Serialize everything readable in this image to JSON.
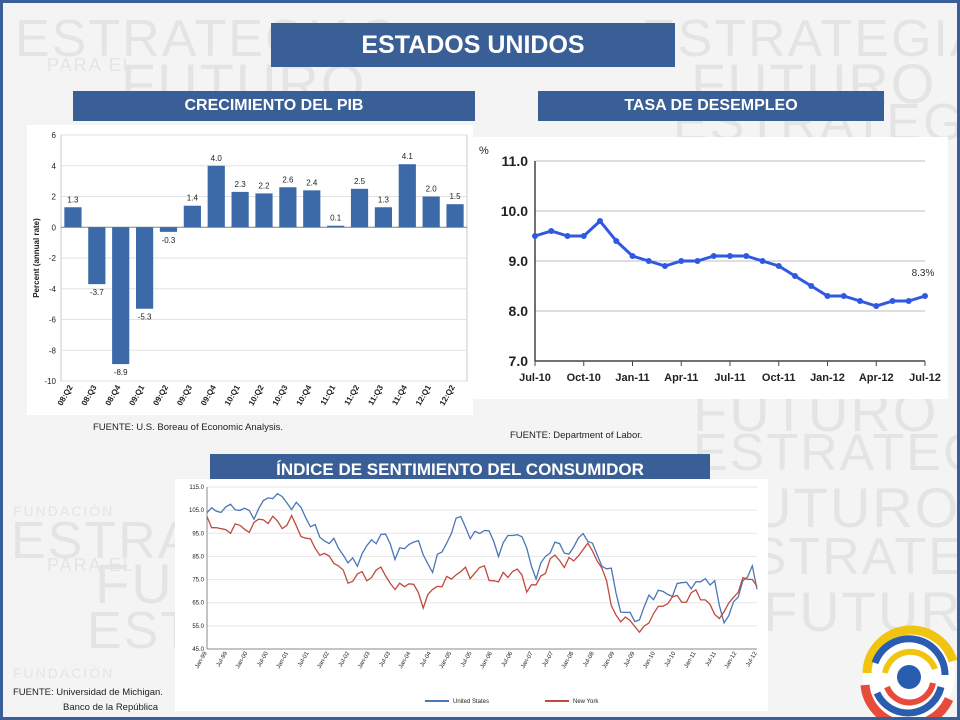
{
  "slide": {
    "title": "ESTADOS UNIDOS",
    "watermark_lines": [
      "FUNDACIÓN",
      "ESTRATEGIAS",
      "PARA EL",
      "FUTURO"
    ],
    "colors": {
      "banner": "#3a5f96",
      "frame": "#3a5f96"
    }
  },
  "gdp": {
    "banner": "CRECIMIENTO DEL PIB",
    "source": "FUENTE: U.S. Boreau of Economic Analysis."
  },
  "unemployment": {
    "banner": "TASA DE DESEMPLEO",
    "source": "FUENTE: Department of Labor."
  },
  "sentiment": {
    "banner": "ÍNDICE DE SENTIMIENTO DEL CONSUMIDOR",
    "source_line1": "FUENTE: Universidad de Michigan.",
    "source_line2": "Banco de la República"
  },
  "chart_data": [
    {
      "type": "bar",
      "ylabel": "Percent (annual rate)",
      "ylim": [
        -10,
        6
      ],
      "yticks": [
        -10,
        -8,
        -6,
        -4,
        -2,
        0,
        2,
        4,
        6
      ],
      "grid": true,
      "bar_color": "#3c6aa8",
      "categories": [
        "08:Q2",
        "08:Q3",
        "08:Q4",
        "09:Q1",
        "09:Q2",
        "09:Q3",
        "09:Q4",
        "10:Q1",
        "10:Q2",
        "10:Q3",
        "10:Q4",
        "11:Q1",
        "11:Q2",
        "11:Q3",
        "11:Q4",
        "12:Q1",
        "12:Q2"
      ],
      "values": [
        1.3,
        -3.7,
        -8.9,
        -5.3,
        -0.3,
        1.4,
        4.0,
        2.3,
        2.2,
        2.6,
        2.4,
        0.1,
        2.5,
        1.3,
        4.1,
        2.0,
        1.5
      ],
      "value_labels": [
        "1.3",
        "-3.7",
        "-8.9",
        "-5.3",
        "-0.3",
        "1.4",
        "4.0",
        "2.3",
        "2.2",
        "2.6",
        "2.4",
        "0.1",
        "2.5",
        "1.3",
        "4.1",
        "2.0",
        "1.5"
      ]
    },
    {
      "type": "line",
      "unit_label": "%",
      "ylim": [
        7.0,
        11.0
      ],
      "yticks": [
        "7.0",
        "8.0",
        "9.0",
        "10.0",
        "11.0"
      ],
      "xtick_labels": [
        "Jul-10",
        "Oct-10",
        "Jan-11",
        "Apr-11",
        "Jul-11",
        "Oct-11",
        "Jan-12",
        "Apr-12",
        "Jul-12"
      ],
      "grid": true,
      "line_color": "#2f59e0",
      "series": [
        {
          "values": [
            9.5,
            9.6,
            9.5,
            9.5,
            9.8,
            9.4,
            9.1,
            9.0,
            8.9,
            9.0,
            9.0,
            9.1,
            9.1,
            9.1,
            9.0,
            8.9,
            8.7,
            8.5,
            8.3,
            8.3,
            8.2,
            8.1,
            8.2,
            8.2,
            8.3
          ]
        }
      ],
      "annotation": "8.3%"
    },
    {
      "type": "line",
      "ylim": [
        45.0,
        115.0
      ],
      "yticks": [
        "45.0",
        "55.0",
        "65.0",
        "75.0",
        "85.0",
        "95.0",
        "105.0",
        "115.0"
      ],
      "xtick_labels": [
        "Jan-99",
        "Jul-99",
        "Jan-00",
        "Jul-00",
        "Jan-01",
        "Jul-01",
        "Jan-02",
        "Jul-02",
        "Jan-03",
        "Jul-03",
        "Jan-04",
        "Jul-04",
        "Jan-05",
        "Jul-05",
        "Jan-06",
        "Jul-06",
        "Jan-07",
        "Jul-07",
        "Jan-08",
        "Jul-08",
        "Jan-09",
        "Jul-09",
        "Jan-10",
        "Jul-10",
        "Jan-11",
        "Jul-11",
        "Jan-12",
        "Jul-12"
      ],
      "grid": true,
      "series": [
        {
          "name": "United States",
          "color": "#4a76b8",
          "anchors": [
            [
              0,
              103.9
            ],
            [
              2,
              105
            ],
            [
              6,
              106.5
            ],
            [
              10,
              103
            ],
            [
              12,
              108
            ],
            [
              14,
              112
            ],
            [
              16,
              110
            ],
            [
              18,
              107
            ],
            [
              20,
              106
            ],
            [
              22,
              99
            ],
            [
              24,
              94
            ],
            [
              26,
              91
            ],
            [
              28,
              90
            ],
            [
              30,
              82
            ],
            [
              32,
              83
            ],
            [
              34,
              89
            ],
            [
              36,
              93
            ],
            [
              38,
              94
            ],
            [
              40,
              86
            ],
            [
              42,
              88
            ],
            [
              44,
              93
            ],
            [
              46,
              86
            ],
            [
              48,
              79
            ],
            [
              50,
              88
            ],
            [
              52,
              95
            ],
            [
              54,
              104
            ],
            [
              56,
              92
            ],
            [
              58,
              97
            ],
            [
              60,
              95
            ],
            [
              62,
              87
            ],
            [
              64,
              93
            ],
            [
              66,
              96
            ],
            [
              68,
              88
            ],
            [
              70,
              76
            ],
            [
              72,
              85
            ],
            [
              74,
              91
            ],
            [
              76,
              87
            ],
            [
              78,
              88
            ],
            [
              80,
              96
            ],
            [
              82,
              89
            ],
            [
              84,
              82
            ],
            [
              86,
              78
            ],
            [
              88,
              62
            ],
            [
              90,
              59
            ],
            [
              92,
              58
            ],
            [
              94,
              67
            ],
            [
              96,
              70
            ],
            [
              98,
              68
            ],
            [
              100,
              72
            ],
            [
              102,
              74
            ],
            [
              104,
              72
            ],
            [
              106,
              76
            ],
            [
              108,
              72
            ],
            [
              110,
              57
            ],
            [
              112,
              63
            ],
            [
              114,
              75
            ],
            [
              115,
              76
            ],
            [
              116,
              79
            ],
            [
              117,
              73
            ]
          ]
        },
        {
          "name": "New York",
          "color": "#c04a3c",
          "anchors": [
            [
              0,
              100
            ],
            [
              2,
              98
            ],
            [
              4,
              95
            ],
            [
              6,
              99
            ],
            [
              8,
              96
            ],
            [
              10,
              99
            ],
            [
              12,
              101
            ],
            [
              14,
              101
            ],
            [
              16,
              98
            ],
            [
              18,
              101
            ],
            [
              20,
              95
            ],
            [
              22,
              91
            ],
            [
              24,
              87
            ],
            [
              26,
              84
            ],
            [
              28,
              82
            ],
            [
              30,
              73
            ],
            [
              32,
              78
            ],
            [
              34,
              75
            ],
            [
              36,
              79
            ],
            [
              38,
              78
            ],
            [
              40,
              70
            ],
            [
              42,
              74
            ],
            [
              44,
              72
            ],
            [
              46,
              65
            ],
            [
              48,
              70
            ],
            [
              50,
              74
            ],
            [
              52,
              75
            ],
            [
              54,
              80
            ],
            [
              56,
              76
            ],
            [
              58,
              81
            ],
            [
              60,
              76
            ],
            [
              62,
              74
            ],
            [
              64,
              78
            ],
            [
              66,
              79
            ],
            [
              68,
              72
            ],
            [
              70,
              72
            ],
            [
              72,
              80
            ],
            [
              74,
              85
            ],
            [
              76,
              82
            ],
            [
              78,
              83
            ],
            [
              80,
              89
            ],
            [
              82,
              88
            ],
            [
              84,
              80
            ],
            [
              86,
              65
            ],
            [
              88,
              56
            ],
            [
              90,
              59
            ],
            [
              92,
              51
            ],
            [
              94,
              58
            ],
            [
              96,
              62
            ],
            [
              98,
              66
            ],
            [
              100,
              67
            ],
            [
              102,
              66
            ],
            [
              104,
              70
            ],
            [
              106,
              66
            ],
            [
              108,
              60
            ],
            [
              110,
              60
            ],
            [
              112,
              68
            ],
            [
              114,
              74
            ],
            [
              116,
              76
            ],
            [
              117,
              73
            ]
          ]
        }
      ]
    }
  ]
}
